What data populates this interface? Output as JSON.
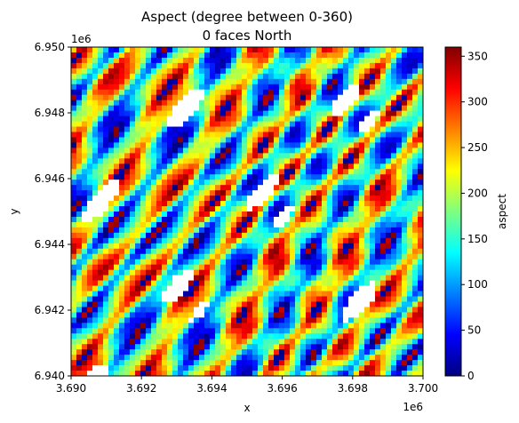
{
  "chart_data": {
    "type": "heatmap",
    "title_lines": [
      "Aspect (degree between 0-360)",
      "0 faces North"
    ],
    "xlabel": "x",
    "ylabel": "y",
    "x_offset_label": "1e6",
    "y_offset_label": "1e6",
    "xlim": [
      3.69,
      3.7
    ],
    "ylim": [
      6.94,
      6.95
    ],
    "x_ticks": [
      "3.690",
      "3.692",
      "3.694",
      "3.696",
      "3.698",
      "3.700"
    ],
    "y_ticks": [
      "6.940",
      "6.942",
      "6.944",
      "6.946",
      "6.948",
      "6.950"
    ],
    "colorbar": {
      "label": "aspect",
      "colormap": "jet",
      "range": [
        0,
        360
      ],
      "ticks": [
        "0",
        "50",
        "100",
        "150",
        "200",
        "250",
        "300",
        "350"
      ]
    },
    "colormap_stops": [
      "#00007f",
      "#0000ff",
      "#007fff",
      "#00ffff",
      "#7fff7f",
      "#ffff00",
      "#ff7f00",
      "#ff0000",
      "#7f0000"
    ],
    "nodata_color": "#ffffff"
  }
}
